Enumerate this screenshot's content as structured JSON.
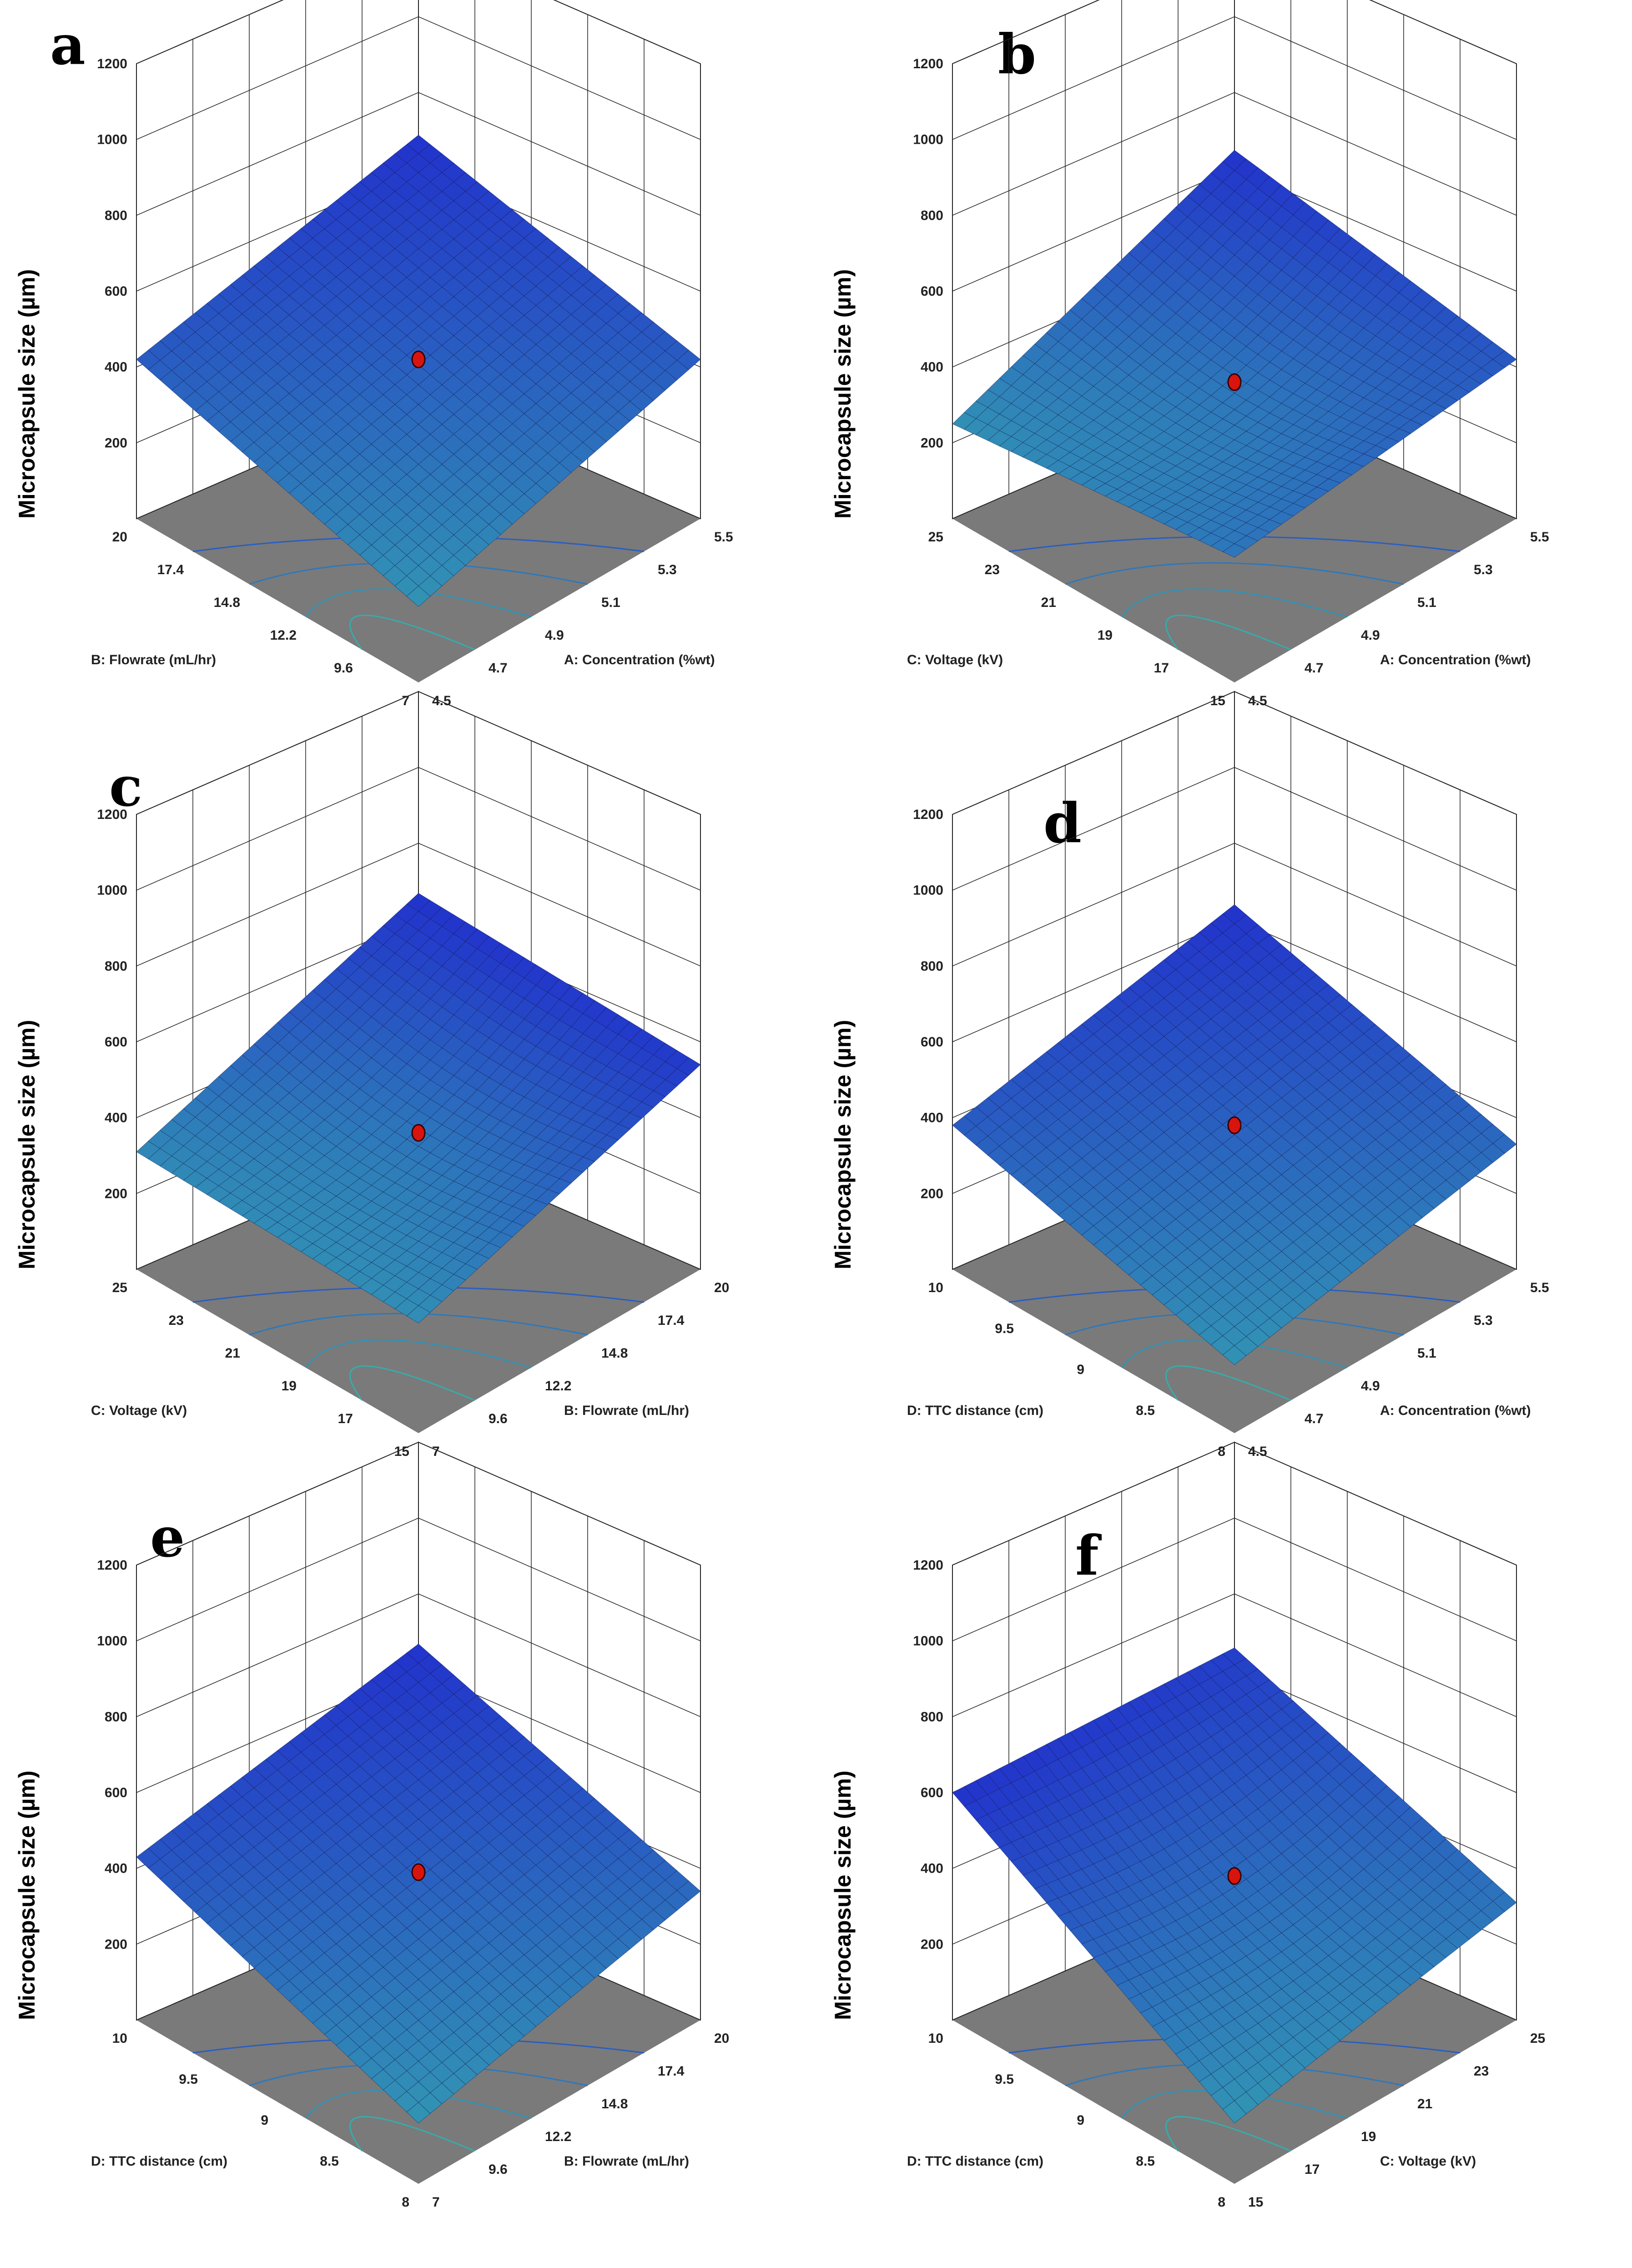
{
  "colors": {
    "floor": "#7a7a7a",
    "grid": "#222222",
    "surface_low": "#3ee0a0",
    "surface_high": "#2233cc",
    "mesh": "#111144",
    "point": "#d8140e"
  },
  "chart_data": [
    {
      "type": "surface3d",
      "label": "a",
      "zlabel": "Microcapsule size (µm)",
      "zlim": [
        0,
        1200
      ],
      "zticks": [
        200,
        400,
        600,
        800,
        1000,
        1200
      ],
      "xlabel": "A: Concentration (%wt)",
      "xticks": [
        "4.5",
        "4.7",
        "4.9",
        "5.1",
        "5.3",
        "5.5"
      ],
      "ylabel": "B: Flowrate (mL/hr)",
      "yticks": [
        "7",
        "9.6",
        "12.2",
        "14.8",
        "17.4",
        "20"
      ],
      "surface_corners": {
        "front": 200,
        "right": 420,
        "back": 580,
        "left": 420
      },
      "center_point": {
        "z": 420
      },
      "style": "flat"
    },
    {
      "type": "surface3d",
      "label": "b",
      "zlabel": "Microcapsule size (µm)",
      "zlim": [
        0,
        1200
      ],
      "zticks": [
        200,
        400,
        600,
        800,
        1000,
        1200
      ],
      "xlabel": "A: Concentration (%wt)",
      "xticks": [
        "4.5",
        "4.7",
        "4.9",
        "5.1",
        "5.3",
        "5.5"
      ],
      "ylabel": "C: Voltage (kV)",
      "yticks": [
        "15",
        "17",
        "19",
        "21",
        "23",
        "25"
      ],
      "surface_corners": {
        "front": 330,
        "right": 420,
        "back": 540,
        "left": 250
      },
      "center_point": {
        "z": 360
      },
      "style": "curved"
    },
    {
      "type": "surface3d",
      "label": "c",
      "zlabel": "Microcapsule size (µm)",
      "zlim": [
        0,
        1200
      ],
      "zticks": [
        200,
        400,
        600,
        800,
        1000,
        1200
      ],
      "xlabel": "B: Flowrate (mL/hr)",
      "xticks": [
        "7",
        "9.6",
        "12.2",
        "14.8",
        "17.4",
        "20"
      ],
      "ylabel": "C: Voltage (kV)",
      "yticks": [
        "15",
        "17",
        "19",
        "21",
        "23",
        "25"
      ],
      "surface_corners": {
        "front": 290,
        "right": 540,
        "back": 560,
        "left": 310
      },
      "center_point": {
        "z": 360
      },
      "style": "curved"
    },
    {
      "type": "surface3d",
      "label": "d",
      "zlabel": "Microcapsule size (µm)",
      "zlim": [
        0,
        1200
      ],
      "zticks": [
        200,
        400,
        600,
        800,
        1000,
        1200
      ],
      "xlabel": "A: Concentration (%wt)",
      "xticks": [
        "4.5",
        "4.7",
        "4.9",
        "5.1",
        "5.3",
        "5.5"
      ],
      "ylabel": "D: TTC distance (cm)",
      "yticks": [
        "8",
        "8.5",
        "9",
        "9.5",
        "10"
      ],
      "surface_corners": {
        "front": 180,
        "right": 330,
        "back": 530,
        "left": 380
      },
      "center_point": {
        "z": 380
      },
      "style": "flat"
    },
    {
      "type": "surface3d",
      "label": "e",
      "zlabel": "Microcapsule size (µm)",
      "zlim": [
        0,
        1200
      ],
      "zticks": [
        200,
        400,
        600,
        800,
        1000,
        1200
      ],
      "xlabel": "B: Flowrate (mL/hr)",
      "xticks": [
        "7",
        "9.6",
        "12.2",
        "14.8",
        "17.4",
        "20"
      ],
      "ylabel": "D: TTC distance (cm)",
      "yticks": [
        "8",
        "8.5",
        "9",
        "9.5",
        "10"
      ],
      "surface_corners": {
        "front": 160,
        "right": 340,
        "back": 560,
        "left": 430
      },
      "center_point": {
        "z": 390
      },
      "style": "flat"
    },
    {
      "type": "surface3d",
      "label": "f",
      "zlabel": "Microcapsule size (µm)",
      "zlim": [
        0,
        1200
      ],
      "zticks": [
        200,
        400,
        600,
        800,
        1000,
        1200
      ],
      "xlabel": "C: Voltage (kV)",
      "xticks": [
        "15",
        "17",
        "19",
        "21",
        "23",
        "25"
      ],
      "ylabel": "D: TTC distance (cm)",
      "yticks": [
        "8",
        "8.5",
        "9",
        "9.5",
        "10"
      ],
      "surface_corners": {
        "front": 160,
        "right": 310,
        "back": 550,
        "left": 600
      },
      "center_point": {
        "z": 380
      },
      "style": "curved"
    }
  ]
}
